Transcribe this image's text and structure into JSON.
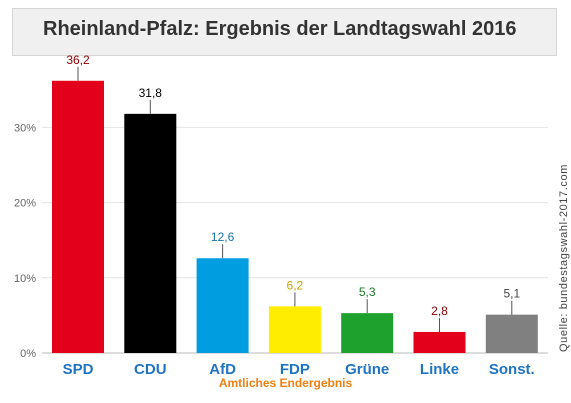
{
  "chart_data": {
    "type": "bar",
    "title": "Rheinland-Pfalz: Ergebnis der Landtagswahl 2016",
    "categories": [
      "SPD",
      "CDU",
      "AfD",
      "FDP",
      "Grüne",
      "Linke",
      "Sonst."
    ],
    "values": [
      36.2,
      31.8,
      12.6,
      6.2,
      5.3,
      2.8,
      5.1
    ],
    "value_labels": [
      "36,2",
      "31,8",
      "12,6",
      "6,2",
      "5,3",
      "2,8",
      "5,1"
    ],
    "bar_colors": [
      "#e2001a",
      "#000000",
      "#009ee0",
      "#ffed00",
      "#1fa12d",
      "#e2001a",
      "#808080"
    ],
    "value_label_colors": [
      "#8b0000",
      "#000000",
      "#1874a8",
      "#c8a400",
      "#1a7a23",
      "#8b0000",
      "#444444"
    ],
    "category_label_color": "#1f74c2",
    "yticks": [
      0,
      10,
      20,
      30
    ],
    "ytick_labels": [
      "0%",
      "10%",
      "20%",
      "30%"
    ],
    "ylim": [
      0,
      38.5
    ],
    "grid": true,
    "xlabel": "Amtliches Endergebnis",
    "source": "Quelle: bundestagswahl-2017.com"
  }
}
